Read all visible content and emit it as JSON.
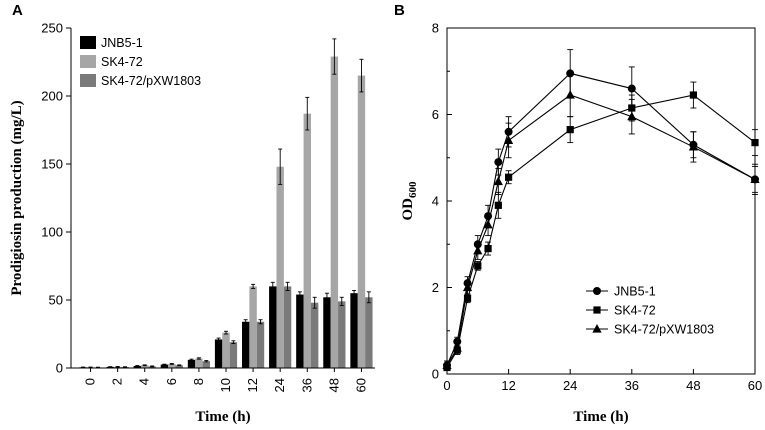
{
  "chart_data": [
    {
      "panel": "A",
      "type": "bar",
      "xlabel": "Time (h)",
      "ylabel": "Prodigiosin production (mg/L)",
      "ylim": [
        0,
        250
      ],
      "yticks": [
        0,
        50,
        100,
        150,
        200,
        250
      ],
      "categories": [
        "0",
        "2",
        "4",
        "6",
        "8",
        "10",
        "12",
        "24",
        "36",
        "48",
        "60"
      ],
      "legend_position": "top-left",
      "series": [
        {
          "name": "JNB5-1",
          "color": "#000000",
          "values": [
            0.5,
            0.8,
            1.5,
            2.5,
            6,
            21,
            34,
            60,
            54,
            52,
            55
          ],
          "errors": [
            0.2,
            0.2,
            0.3,
            0.3,
            0.5,
            1,
            1.5,
            3,
            2,
            3,
            2
          ]
        },
        {
          "name": "SK4-72",
          "color": "#a6a6a6",
          "values": [
            0.5,
            0.9,
            2,
            3,
            7,
            26,
            60,
            148,
            187,
            229,
            215
          ],
          "errors": [
            0.2,
            0.2,
            0.3,
            0.3,
            0.5,
            1,
            1.5,
            13,
            12,
            13,
            12
          ]
        },
        {
          "name": "SK4-72/pXW1803",
          "color": "#7a7a7a",
          "values": [
            0.4,
            0.7,
            1.2,
            2,
            5,
            19,
            34,
            60,
            48,
            49,
            52
          ],
          "errors": [
            0.2,
            0.2,
            0.3,
            0.3,
            0.5,
            1,
            1.5,
            3,
            4,
            3,
            4
          ]
        }
      ]
    },
    {
      "panel": "B",
      "type": "line",
      "xlabel": "Time (h)",
      "ylabel_main": "OD",
      "ylabel_sub": "600",
      "xlim": [
        0,
        60
      ],
      "ylim": [
        0,
        8
      ],
      "xticks": [
        0,
        12,
        24,
        36,
        48,
        60
      ],
      "yticks": [
        0,
        2,
        4,
        6,
        8
      ],
      "legend_position": "bottom-right",
      "series": [
        {
          "name": "JNB5-1",
          "marker": "circle",
          "x": [
            0,
            2,
            4,
            6,
            8,
            10,
            12,
            24,
            36,
            48,
            60
          ],
          "y": [
            0.2,
            0.75,
            2.1,
            3.0,
            3.65,
            4.9,
            5.6,
            6.95,
            6.6,
            5.3,
            4.5
          ],
          "err": [
            0.1,
            0.1,
            0.15,
            0.2,
            0.25,
            0.3,
            0.35,
            0.55,
            0.5,
            0.3,
            0.3
          ]
        },
        {
          "name": "SK4-72",
          "marker": "square",
          "x": [
            0,
            2,
            4,
            6,
            8,
            10,
            12,
            24,
            36,
            48,
            60
          ],
          "y": [
            0.15,
            0.55,
            1.75,
            2.5,
            2.9,
            3.9,
            4.55,
            5.65,
            6.15,
            6.45,
            5.35
          ],
          "err": [
            0.05,
            0.1,
            0.1,
            0.1,
            0.15,
            0.3,
            0.15,
            0.3,
            0.3,
            0.3,
            0.3
          ]
        },
        {
          "name": "SK4-72/pXW1803",
          "marker": "triangle",
          "x": [
            0,
            2,
            4,
            6,
            8,
            10,
            12,
            24,
            36,
            48,
            60
          ],
          "y": [
            0.2,
            0.6,
            2.0,
            2.85,
            3.45,
            4.45,
            5.4,
            6.45,
            5.95,
            5.25,
            4.5
          ],
          "err": [
            0.1,
            0.1,
            0.15,
            0.2,
            0.25,
            0.3,
            0.4,
            0.5,
            0.4,
            0.35,
            0.35
          ]
        }
      ]
    }
  ]
}
